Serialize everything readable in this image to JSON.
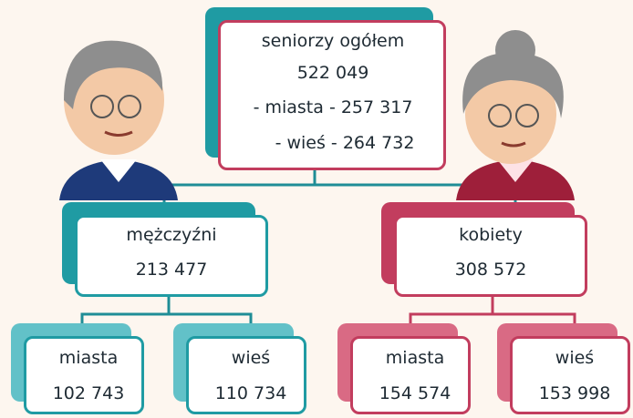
{
  "root": {
    "label": "seniorzy ogółem",
    "value": "522 049",
    "details": [
      "- miasta - 257 317",
      "- wieś - 264 732"
    ]
  },
  "groups": [
    {
      "label": "mężczyźni",
      "value": "213 477",
      "children": [
        {
          "label": "miasta",
          "value": "102 743"
        },
        {
          "label": "wieś",
          "value": "110 734"
        }
      ]
    },
    {
      "label": "kobiety",
      "value": "308 572",
      "children": [
        {
          "label": "miasta",
          "value": "154 574"
        },
        {
          "label": "wieś",
          "value": "153 998"
        }
      ]
    }
  ]
}
